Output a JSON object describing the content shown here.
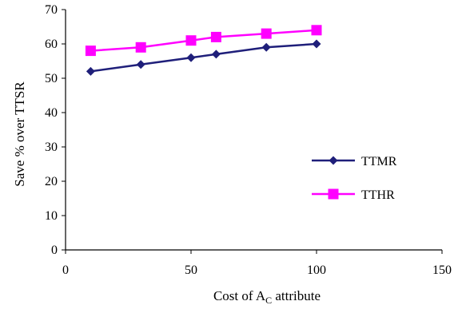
{
  "chart_data": {
    "type": "line",
    "xlabel": {
      "main": "Cost of A",
      "sub": "C",
      "tail": " attribute"
    },
    "ylabel": "Save % over TTSR",
    "xlim": [
      0,
      150
    ],
    "ylim": [
      0,
      70
    ],
    "xticks": [
      0,
      50,
      100,
      150
    ],
    "yticks": [
      0,
      10,
      20,
      30,
      40,
      50,
      60,
      70
    ],
    "grid": false,
    "legend_position": "right",
    "series": [
      {
        "name": "TTMR",
        "color": "#1f1f7a",
        "marker": "diamond",
        "points": [
          {
            "x": 10,
            "y": 52
          },
          {
            "x": 30,
            "y": 54
          },
          {
            "x": 50,
            "y": 56
          },
          {
            "x": 60,
            "y": 57
          },
          {
            "x": 80,
            "y": 59
          },
          {
            "x": 100,
            "y": 60
          }
        ]
      },
      {
        "name": "TTHR",
        "color": "#ff00ff",
        "marker": "square",
        "points": [
          {
            "x": 10,
            "y": 58
          },
          {
            "x": 30,
            "y": 59
          },
          {
            "x": 50,
            "y": 61
          },
          {
            "x": 60,
            "y": 62
          },
          {
            "x": 80,
            "y": 63
          },
          {
            "x": 100,
            "y": 64
          }
        ]
      }
    ]
  }
}
